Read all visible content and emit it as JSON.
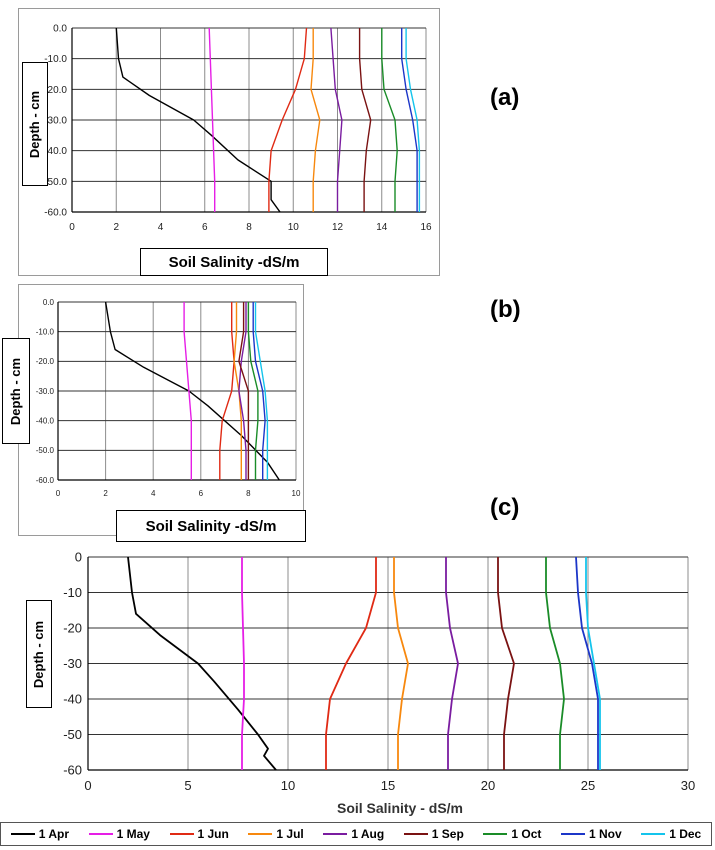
{
  "panel_labels": [
    "(a)",
    "(b)",
    "(c)"
  ],
  "y_axis_label": "Depth - cm",
  "legend": [
    {
      "label": "1 Apr",
      "color": "#000000"
    },
    {
      "label": "1 May",
      "color": "#e61ee6"
    },
    {
      "label": "1 Jun",
      "color": "#e02a14"
    },
    {
      "label": "1 Jul",
      "color": "#f7880e"
    },
    {
      "label": "1 Aug",
      "color": "#7a1ca0"
    },
    {
      "label": "1 Sep",
      "color": "#7a1212"
    },
    {
      "label": "1 Oct",
      "color": "#1a8c28"
    },
    {
      "label": "1 Nov",
      "color": "#1c36c8"
    },
    {
      "label": "1 Dec",
      "color": "#14c4ec"
    }
  ],
  "chart_data": [
    {
      "type": "line",
      "panel": "(a)",
      "xlabel": "Soil Salinity -dS/m",
      "ylabel": "Depth - cm",
      "xlim": [
        0,
        16
      ],
      "ylim": [
        -60,
        0
      ],
      "xticks": [
        "0",
        "2",
        "4",
        "6",
        "8",
        "10",
        "12",
        "14",
        "16"
      ],
      "yticks": [
        "0.0",
        "-10.0",
        "-20.0",
        "-30.0",
        "-40.0",
        "-50.0",
        "-60.0"
      ],
      "grid": true,
      "series": [
        {
          "name": "1 Apr",
          "x": [
            2.0,
            2.1,
            2.3,
            3.5,
            5.5,
            6.3,
            7.5,
            9.0,
            9.0,
            9.4
          ],
          "y": [
            0,
            -10,
            -16,
            -22,
            -30,
            -35,
            -43,
            -50,
            -56,
            -60
          ]
        },
        {
          "name": "1 May",
          "x": [
            6.2,
            6.25,
            6.3,
            6.35,
            6.4,
            6.45,
            6.45
          ],
          "y": [
            0,
            -10,
            -20,
            -30,
            -40,
            -50,
            -60
          ]
        },
        {
          "name": "1 Jun",
          "x": [
            10.6,
            10.5,
            10.1,
            9.5,
            9.0,
            8.9,
            8.9
          ],
          "y": [
            0,
            -10,
            -20,
            -30,
            -40,
            -50,
            -60
          ]
        },
        {
          "name": "1 Jul",
          "x": [
            10.9,
            10.9,
            10.8,
            11.2,
            11.0,
            10.9,
            10.9
          ],
          "y": [
            0,
            -10,
            -20,
            -30,
            -40,
            -50,
            -60
          ]
        },
        {
          "name": "1 Aug",
          "x": [
            11.7,
            11.8,
            11.9,
            12.2,
            12.1,
            12.0,
            12.0
          ],
          "y": [
            0,
            -10,
            -20,
            -30,
            -40,
            -50,
            -60
          ]
        },
        {
          "name": "1 Sep",
          "x": [
            13.0,
            13.0,
            13.1,
            13.5,
            13.3,
            13.2,
            13.2
          ],
          "y": [
            0,
            -10,
            -20,
            -30,
            -40,
            -50,
            -60
          ]
        },
        {
          "name": "1 Oct",
          "x": [
            14.0,
            14.0,
            14.1,
            14.6,
            14.7,
            14.6,
            14.6
          ],
          "y": [
            0,
            -10,
            -20,
            -30,
            -40,
            -50,
            -60
          ]
        },
        {
          "name": "1 Nov",
          "x": [
            14.9,
            14.9,
            15.1,
            15.4,
            15.6,
            15.6,
            15.6
          ],
          "y": [
            0,
            -10,
            -20,
            -30,
            -40,
            -50,
            -60
          ]
        },
        {
          "name": "1 Dec",
          "x": [
            15.1,
            15.1,
            15.3,
            15.6,
            15.7,
            15.7,
            15.7
          ],
          "y": [
            0,
            -10,
            -20,
            -30,
            -40,
            -50,
            -60
          ]
        }
      ]
    },
    {
      "type": "line",
      "panel": "(b)",
      "xlabel": "Soil Salinity -dS/m",
      "ylabel": "Depth - cm",
      "xlim": [
        0,
        10
      ],
      "ylim": [
        -60,
        0
      ],
      "xticks": [
        "0",
        "2",
        "4",
        "6",
        "8",
        "10"
      ],
      "yticks": [
        "0.0",
        "-10.0",
        "-20.0",
        "-30.0",
        "-40.0",
        "-50.0",
        "-60.0"
      ],
      "grid": true,
      "series": [
        {
          "name": "1 Apr",
          "x": [
            2.0,
            2.2,
            2.4,
            3.6,
            5.5,
            6.3,
            7.7,
            8.8,
            9.3
          ],
          "y": [
            0,
            -10,
            -16,
            -22,
            -30,
            -35,
            -45,
            -54,
            -60
          ]
        },
        {
          "name": "1 May",
          "x": [
            5.3,
            5.3,
            5.4,
            5.5,
            5.6,
            5.6,
            5.6
          ],
          "y": [
            0,
            -10,
            -20,
            -30,
            -40,
            -50,
            -60
          ]
        },
        {
          "name": "1 Jun",
          "x": [
            7.3,
            7.3,
            7.4,
            7.3,
            6.9,
            6.8,
            6.8
          ],
          "y": [
            0,
            -10,
            -20,
            -30,
            -40,
            -50,
            -60
          ]
        },
        {
          "name": "1 Jul",
          "x": [
            7.5,
            7.5,
            7.4,
            7.6,
            7.7,
            7.7,
            7.7
          ],
          "y": [
            0,
            -10,
            -20,
            -30,
            -40,
            -50,
            -60
          ]
        },
        {
          "name": "1 Aug",
          "x": [
            7.9,
            7.9,
            7.7,
            7.6,
            7.8,
            7.9,
            7.9
          ],
          "y": [
            0,
            -10,
            -20,
            -30,
            -40,
            -50,
            -60
          ]
        },
        {
          "name": "1 Sep",
          "x": [
            7.8,
            7.8,
            7.6,
            8.0,
            8.0,
            8.0,
            8.0
          ],
          "y": [
            0,
            -10,
            -20,
            -30,
            -40,
            -50,
            -60
          ]
        },
        {
          "name": "1 Oct",
          "x": [
            8.0,
            8.0,
            8.1,
            8.4,
            8.4,
            8.3,
            8.3
          ],
          "y": [
            0,
            -10,
            -20,
            -30,
            -40,
            -50,
            -60
          ]
        },
        {
          "name": "1 Nov",
          "x": [
            8.2,
            8.2,
            8.3,
            8.6,
            8.7,
            8.6,
            8.6
          ],
          "y": [
            0,
            -10,
            -20,
            -30,
            -40,
            -50,
            -60
          ]
        },
        {
          "name": "1 Dec",
          "x": [
            8.3,
            8.3,
            8.5,
            8.7,
            8.8,
            8.8,
            8.8
          ],
          "y": [
            0,
            -10,
            -20,
            -30,
            -40,
            -50,
            -60
          ]
        }
      ]
    },
    {
      "type": "line",
      "panel": "(c)",
      "xlabel": "Soil Salinity - dS/m",
      "ylabel": "Depth - cm",
      "xlim": [
        0,
        30
      ],
      "ylim": [
        -60,
        0
      ],
      "xticks": [
        "0",
        "5",
        "10",
        "15",
        "20",
        "25",
        "30"
      ],
      "yticks": [
        "0",
        "-10",
        "-20",
        "-30",
        "-40",
        "-50",
        "-60"
      ],
      "grid": true,
      "series": [
        {
          "name": "1 Apr",
          "x": [
            2.0,
            2.2,
            2.4,
            3.6,
            5.5,
            6.3,
            7.5,
            8.5,
            9.0,
            8.8,
            9.4
          ],
          "y": [
            0,
            -10,
            -16,
            -22,
            -30,
            -35,
            -43,
            -50,
            -54,
            -56,
            -60
          ]
        },
        {
          "name": "1 May",
          "x": [
            7.7,
            7.7,
            7.75,
            7.8,
            7.8,
            7.7,
            7.7
          ],
          "y": [
            0,
            -10,
            -20,
            -30,
            -40,
            -50,
            -60
          ]
        },
        {
          "name": "1 Jun",
          "x": [
            14.4,
            14.4,
            13.9,
            12.9,
            12.1,
            11.9,
            11.9
          ],
          "y": [
            0,
            -10,
            -20,
            -30,
            -40,
            -50,
            -60
          ]
        },
        {
          "name": "1 Jul",
          "x": [
            15.3,
            15.3,
            15.5,
            16.0,
            15.7,
            15.5,
            15.5
          ],
          "y": [
            0,
            -10,
            -20,
            -30,
            -40,
            -50,
            -60
          ]
        },
        {
          "name": "1 Aug",
          "x": [
            17.9,
            17.9,
            18.1,
            18.5,
            18.2,
            18.0,
            18.0
          ],
          "y": [
            0,
            -10,
            -20,
            -30,
            -40,
            -50,
            -60
          ]
        },
        {
          "name": "1 Sep",
          "x": [
            20.5,
            20.5,
            20.7,
            21.3,
            21.0,
            20.8,
            20.8
          ],
          "y": [
            0,
            -10,
            -20,
            -30,
            -40,
            -50,
            -60
          ]
        },
        {
          "name": "1 Oct",
          "x": [
            22.9,
            22.9,
            23.1,
            23.6,
            23.8,
            23.6,
            23.6
          ],
          "y": [
            0,
            -10,
            -20,
            -30,
            -40,
            -50,
            -60
          ]
        },
        {
          "name": "1 Nov",
          "x": [
            24.4,
            24.5,
            24.7,
            25.2,
            25.5,
            25.5,
            25.5
          ],
          "y": [
            0,
            -10,
            -20,
            -30,
            -40,
            -50,
            -60
          ]
        },
        {
          "name": "1 Dec",
          "x": [
            24.9,
            24.9,
            25.0,
            25.3,
            25.6,
            25.6,
            25.6
          ],
          "y": [
            0,
            -10,
            -20,
            -30,
            -40,
            -50,
            -60
          ]
        }
      ]
    }
  ]
}
